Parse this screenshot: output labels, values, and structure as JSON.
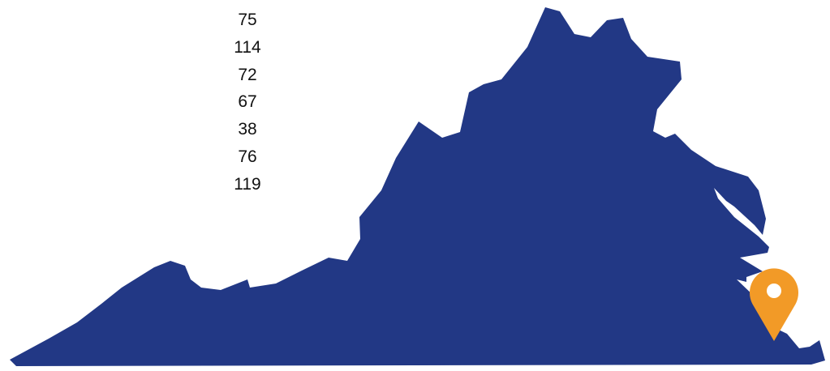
{
  "map": {
    "region": "Virginia",
    "fill_color": "#223885",
    "background_color": "#ffffff",
    "marker": {
      "icon": "map-pin-icon",
      "color": "#f29a27",
      "inner_dot_color": "#ffffff"
    }
  },
  "stats": [
    {
      "value": "75"
    },
    {
      "value": "114"
    },
    {
      "value": "72"
    },
    {
      "value": "67"
    },
    {
      "value": "38"
    },
    {
      "value": "76"
    },
    {
      "value": "119"
    }
  ]
}
